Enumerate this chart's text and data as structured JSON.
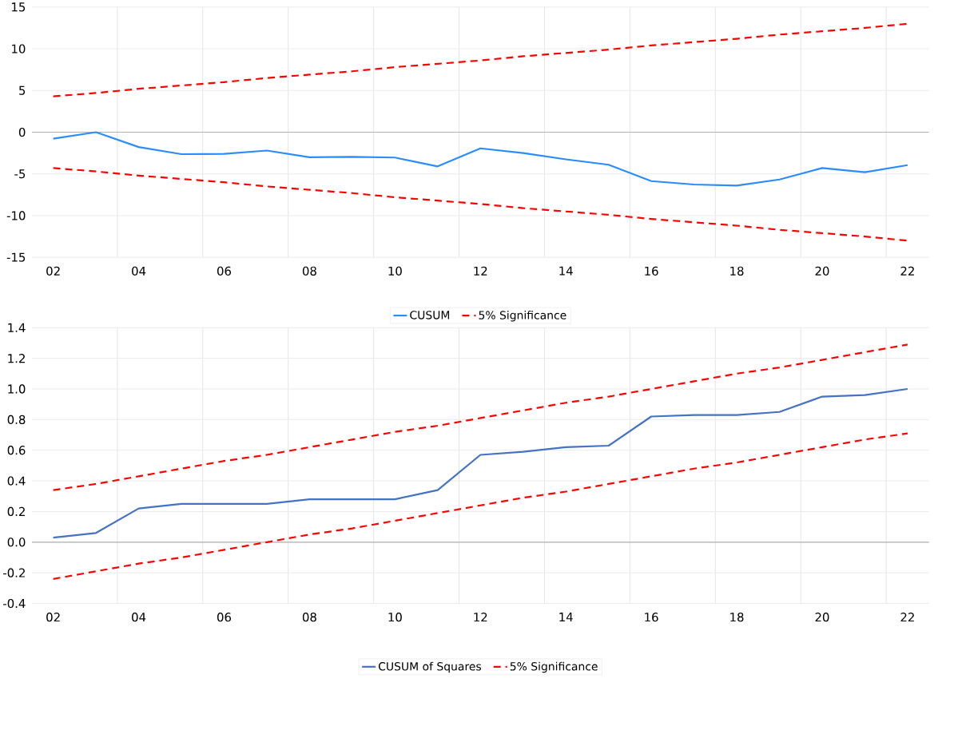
{
  "chart_data": [
    {
      "type": "line",
      "categories": [
        "02",
        null,
        "04",
        null,
        "06",
        null,
        "08",
        null,
        "10",
        null,
        "12",
        null,
        "14",
        null,
        "16",
        null,
        "18",
        null,
        "20",
        null,
        "22"
      ],
      "series": [
        {
          "name": "CUSUM",
          "color": "#2a8cff",
          "line_style": "solid",
          "values": [
            -0.78,
            0.0,
            -1.78,
            -2.63,
            -2.6,
            -2.2,
            -3.0,
            -2.96,
            -3.04,
            -4.1,
            -1.94,
            -2.5,
            -3.25,
            -3.9,
            -5.86,
            -6.27,
            -6.4,
            -5.67,
            -4.3,
            -4.8,
            -3.95
          ]
        },
        {
          "name": "5% Significance",
          "color": "#ff0000",
          "line_style": "dashed",
          "values": [
            4.3,
            4.7,
            5.2,
            5.6,
            6.0,
            6.5,
            6.9,
            7.3,
            7.8,
            8.2,
            8.6,
            9.1,
            9.5,
            9.9,
            10.4,
            10.8,
            11.2,
            11.7,
            12.1,
            12.5,
            13.0
          ]
        },
        {
          "color": "#ff0000",
          "line_style": "dashed",
          "values": [
            -4.3,
            -4.7,
            -5.2,
            -5.6,
            -6.0,
            -6.5,
            -6.9,
            -7.3,
            -7.8,
            -8.2,
            -8.6,
            -9.1,
            -9.5,
            -9.9,
            -10.4,
            -10.8,
            -11.2,
            -11.7,
            -12.1,
            -12.5,
            -13.0
          ]
        }
      ],
      "ylim": [
        -15,
        15
      ],
      "yticks": [
        -15,
        -10,
        -5,
        0,
        5,
        10,
        15
      ],
      "grid": true,
      "legend": "bottom",
      "marker": "none"
    },
    {
      "type": "line",
      "categories": [
        "02",
        null,
        "04",
        null,
        "06",
        null,
        "08",
        null,
        "10",
        null,
        "12",
        null,
        "14",
        null,
        "16",
        null,
        "18",
        null,
        "20",
        null,
        "22"
      ],
      "series": [
        {
          "name": "CUSUM of Squares",
          "color": "#4472c4",
          "line_style": "solid",
          "values": [
            0.03,
            0.06,
            0.22,
            0.25,
            0.25,
            0.25,
            0.28,
            0.28,
            0.28,
            0.34,
            0.57,
            0.59,
            0.62,
            0.63,
            0.82,
            0.83,
            0.83,
            0.85,
            0.95,
            0.96,
            1.0
          ]
        },
        {
          "name": "5% Significance",
          "color": "#ff0000",
          "line_style": "dashed",
          "values": [
            0.34,
            0.38,
            0.43,
            0.48,
            0.53,
            0.57,
            0.62,
            0.67,
            0.72,
            0.76,
            0.81,
            0.86,
            0.91,
            0.95,
            1.0,
            1.05,
            1.1,
            1.14,
            1.19,
            1.24,
            1.29
          ]
        },
        {
          "color": "#ff0000",
          "line_style": "dashed",
          "values": [
            -0.24,
            -0.19,
            -0.14,
            -0.1,
            -0.05,
            0.0,
            0.05,
            0.09,
            0.14,
            0.19,
            0.24,
            0.29,
            0.33,
            0.38,
            0.43,
            0.48,
            0.52,
            0.57,
            0.62,
            0.67,
            0.71
          ]
        }
      ],
      "ylim": [
        -0.4,
        1.4
      ],
      "yticks": [
        -0.4,
        -0.2,
        {
          "value": 0,
          "label": "0.0"
        },
        0.2,
        0.4,
        0.6,
        0.8,
        {
          "value": 1,
          "label": "1.0"
        },
        1.2,
        1.4
      ],
      "grid": true,
      "legend": "bottom",
      "marker": "none"
    }
  ]
}
